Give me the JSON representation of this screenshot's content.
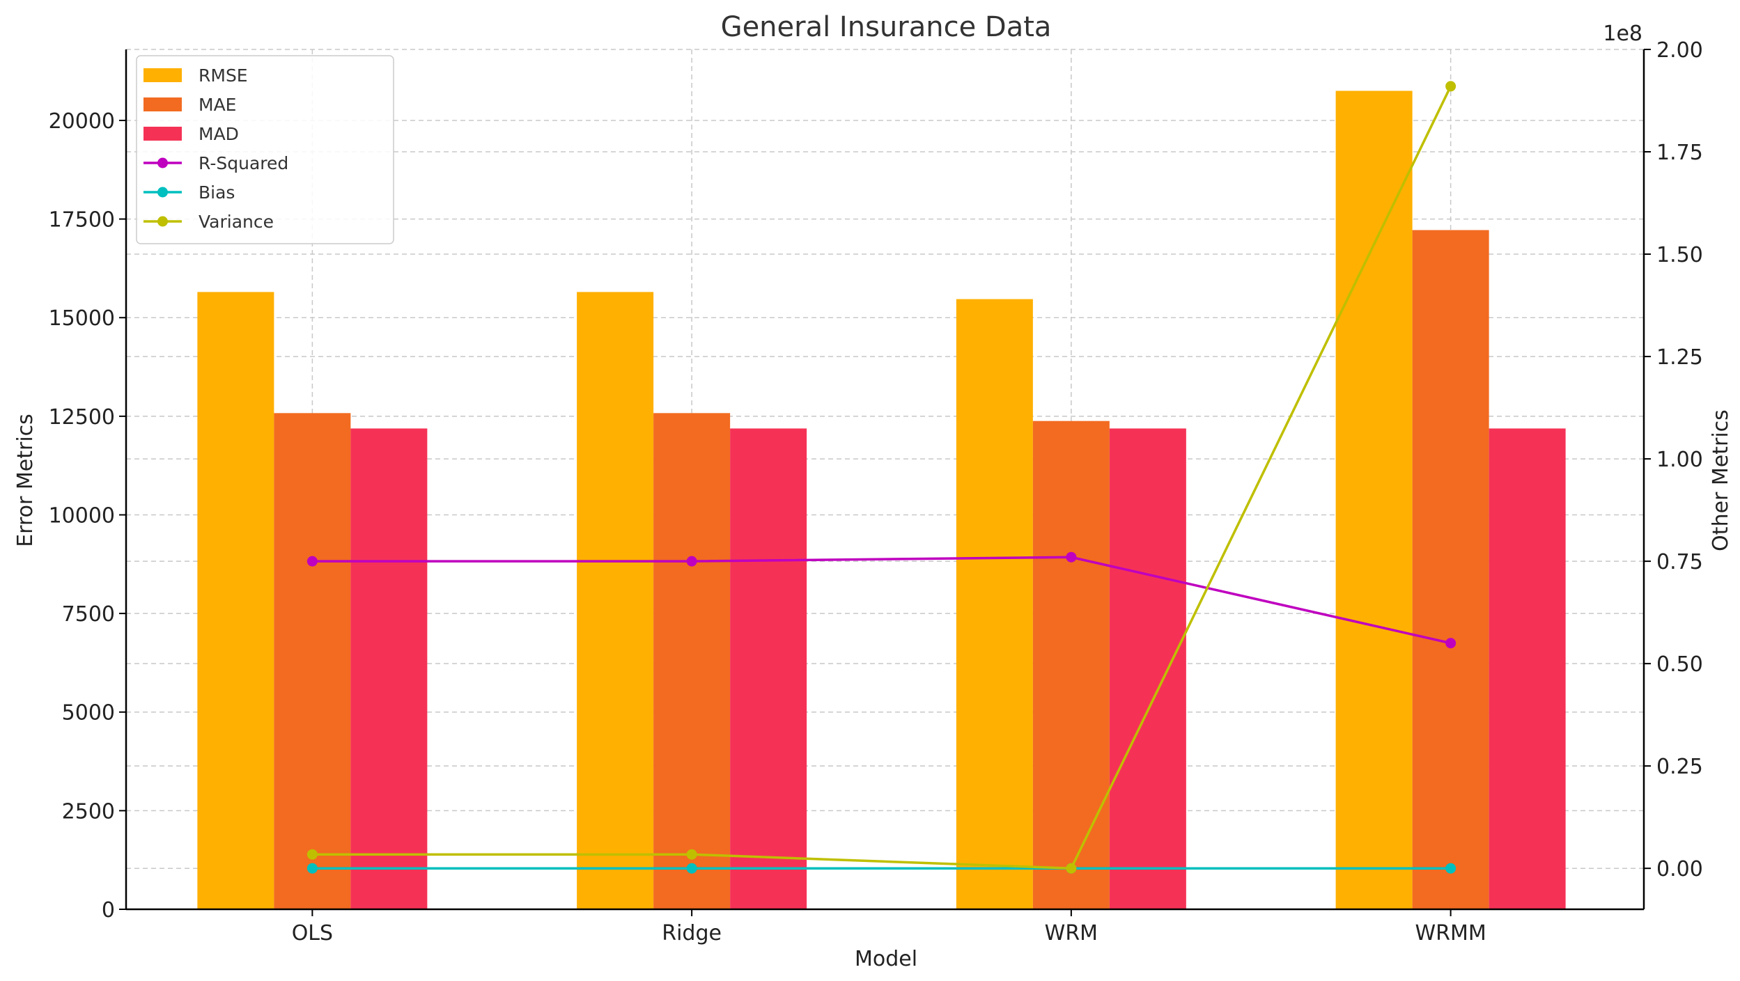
{
  "chart_data": {
    "type": "bar",
    "title": "General Insurance Data",
    "xlabel": "Model",
    "ylabel": "Error Metrics",
    "y2label": "Other Metrics",
    "y2_offset_text": "1e8",
    "categories": [
      "OLS",
      "Ridge",
      "WRM",
      "WRMM"
    ],
    "ylim": [
      0,
      21800
    ],
    "yticks": [
      0,
      2500,
      5000,
      7500,
      10000,
      12500,
      15000,
      17500,
      20000
    ],
    "y2lim": [
      -0.1,
      2.0
    ],
    "y2ticks": [
      0.0,
      0.25,
      0.5,
      0.75,
      1.0,
      1.25,
      1.5,
      1.75,
      2.0
    ],
    "y2tick_labels": [
      "0.00",
      "0.25",
      "0.50",
      "0.75",
      "1.00",
      "1.25",
      "1.50",
      "1.75",
      "2.00"
    ],
    "grid": true,
    "legend_position": "top-left",
    "bar_series": [
      {
        "name": "RMSE",
        "color": "#FFB000",
        "values": [
          15650,
          15650,
          15470,
          20750
        ]
      },
      {
        "name": "MAE",
        "color": "#F26B21",
        "values": [
          12580,
          12580,
          12380,
          17220
        ]
      },
      {
        "name": "MAD",
        "color": "#F53256",
        "values": [
          12190,
          12190,
          12190,
          12190
        ]
      }
    ],
    "line_series": [
      {
        "name": "R-Squared",
        "color": "#BF00BF",
        "values": [
          0.75,
          0.75,
          0.76,
          0.55
        ]
      },
      {
        "name": "Bias",
        "color": "#00BFBF",
        "values": [
          0.0,
          0.0,
          0.0,
          0.0
        ]
      },
      {
        "name": "Variance",
        "color": "#BFBF00",
        "values": [
          0.034,
          0.034,
          0.0,
          1.91
        ]
      }
    ]
  }
}
